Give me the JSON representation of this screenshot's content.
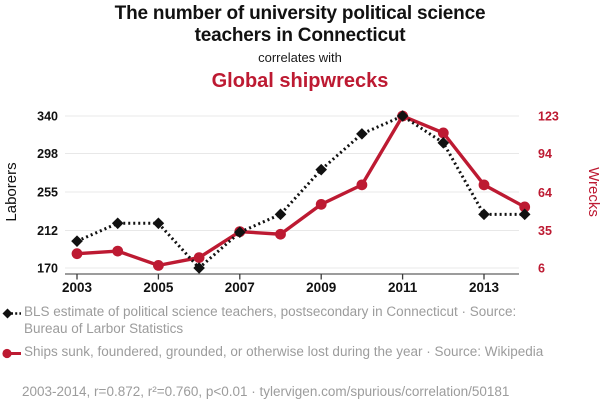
{
  "header": {
    "title": "The number of university political science teachers in Connecticut",
    "subtitle": "correlates with",
    "correlate": "Global shipwrecks"
  },
  "colors": {
    "accent_red": "#bd1a32",
    "series_black": "#111111",
    "gridline": "#e8e8e8",
    "axis_line": "#3a3a3a",
    "muted_text": "#9c9c9c"
  },
  "chart_data": {
    "type": "line",
    "x": [
      2003,
      2004,
      2005,
      2006,
      2007,
      2008,
      2009,
      2010,
      2011,
      2012,
      2013,
      2014
    ],
    "x_tick_labels": [
      "2003",
      "2005",
      "2007",
      "2009",
      "2011",
      "2013"
    ],
    "grid": "horizontal",
    "legend_position": "below",
    "left_axis": {
      "label": "Laborers",
      "ticks": [
        170,
        212,
        255,
        298,
        340
      ],
      "range": [
        170,
        340
      ],
      "color": "#111111"
    },
    "right_axis": {
      "label": "Wrecks",
      "ticks": [
        6,
        35,
        64,
        94,
        123
      ],
      "range": [
        6,
        123
      ],
      "color": "#bd1a32"
    },
    "series": [
      {
        "name": "BLS estimate of political science teachers, postsecondary in Connecticut",
        "axis": "left",
        "color": "#111111",
        "style": "dashed",
        "marker": "diamond",
        "values": [
          200,
          220,
          220,
          170,
          210,
          230,
          280,
          320,
          340,
          310,
          230,
          230
        ]
      },
      {
        "name": "Ships sunk, foundered, grounded, or otherwise lost during the year",
        "axis": "right",
        "color": "#bd1a32",
        "style": "solid",
        "marker": "circle",
        "values": [
          17,
          19,
          8,
          14,
          34,
          32,
          55,
          70,
          123,
          110,
          70,
          53
        ]
      }
    ]
  },
  "legend": [
    {
      "label": "BLS estimate of political science teachers, postsecondary in Connecticut · Source: Bureau of Larbor Statistics"
    },
    {
      "label": "Ships sunk, foundered, grounded, or otherwise lost during the year · Source: Wikipedia"
    }
  ],
  "footer": {
    "text": "2003-2014, r=0.872, r²=0.760, p<0.01 · tylervigen.com/spurious/correlation/50181"
  }
}
